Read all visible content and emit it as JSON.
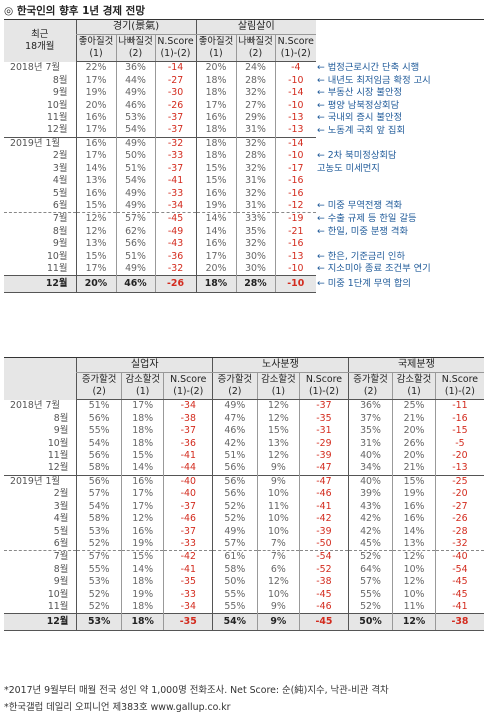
{
  "title": "◎ 한국인의 향후 1년 경제 전망",
  "table1": {
    "corner_line1": "최근",
    "corner_line2": "18개월",
    "groups": [
      "경기(景氣)",
      "살림살이"
    ],
    "cols": [
      {
        "label": "좋아질것",
        "sub": "(1)"
      },
      {
        "label": "나빠질것",
        "sub": "(2)"
      },
      {
        "label": "N.Score",
        "sub": "(1)-(2)"
      },
      {
        "label": "좋아질것",
        "sub": "(1)"
      },
      {
        "label": "나빠질것",
        "sub": "(2)"
      },
      {
        "label": "N.Score",
        "sub": "(1)-(2)"
      }
    ],
    "rows": [
      {
        "month": "2018년 7월",
        "v": [
          "22%",
          "36%",
          "-14",
          "20%",
          "24%",
          "-4"
        ],
        "note": "← 법정근로시간 단축 시행"
      },
      {
        "month": "8월",
        "v": [
          "17%",
          "44%",
          "-27",
          "18%",
          "28%",
          "-10"
        ],
        "note": "← 내년도 최저임금 확정 고시"
      },
      {
        "month": "9월",
        "v": [
          "19%",
          "49%",
          "-30",
          "18%",
          "32%",
          "-14"
        ],
        "note": "← 부동산 시장 불안정"
      },
      {
        "month": "10월",
        "v": [
          "20%",
          "46%",
          "-26",
          "17%",
          "27%",
          "-10"
        ],
        "note": "← 평양 남북정상회담"
      },
      {
        "month": "11월",
        "v": [
          "16%",
          "53%",
          "-37",
          "16%",
          "29%",
          "-13"
        ],
        "note": "← 국내외 증시 불안정"
      },
      {
        "month": "12월",
        "v": [
          "17%",
          "54%",
          "-37",
          "18%",
          "31%",
          "-13"
        ],
        "note": "← 노동계 국회 앞 집회"
      },
      {
        "month": "2019년 1월",
        "v": [
          "16%",
          "49%",
          "-32",
          "18%",
          "32%",
          "-14"
        ],
        "note": ""
      },
      {
        "month": "2월",
        "v": [
          "17%",
          "50%",
          "-33",
          "18%",
          "28%",
          "-10"
        ],
        "note": "← 2차 북미정상회담"
      },
      {
        "month": "3월",
        "v": [
          "14%",
          "51%",
          "-37",
          "15%",
          "32%",
          "-17"
        ],
        "note": "고농도 미세먼지"
      },
      {
        "month": "4월",
        "v": [
          "13%",
          "54%",
          "-41",
          "15%",
          "31%",
          "-16"
        ],
        "note": ""
      },
      {
        "month": "5월",
        "v": [
          "16%",
          "49%",
          "-33",
          "16%",
          "32%",
          "-16"
        ],
        "note": ""
      },
      {
        "month": "6월",
        "v": [
          "15%",
          "49%",
          "-34",
          "19%",
          "31%",
          "-12"
        ],
        "note": "← 미중 무역전쟁 격화"
      },
      {
        "month": "7월",
        "v": [
          "12%",
          "57%",
          "-45",
          "14%",
          "33%",
          "-19"
        ],
        "note": "← 수출 규제 등 한일 갈등"
      },
      {
        "month": "8월",
        "v": [
          "12%",
          "62%",
          "-49",
          "14%",
          "35%",
          "-21"
        ],
        "note": "← 한일, 미중 분쟁 격화"
      },
      {
        "month": "9월",
        "v": [
          "13%",
          "56%",
          "-43",
          "16%",
          "32%",
          "-16"
        ],
        "note": ""
      },
      {
        "month": "10월",
        "v": [
          "15%",
          "51%",
          "-36",
          "17%",
          "30%",
          "-13"
        ],
        "note": "← 한은, 기준금리 인하"
      },
      {
        "month": "11월",
        "v": [
          "17%",
          "49%",
          "-32",
          "20%",
          "30%",
          "-10"
        ],
        "note": "← 지소미아 종료 조건부 연기"
      }
    ],
    "final": {
      "month": "12월",
      "v": [
        "20%",
        "46%",
        "-26",
        "18%",
        "28%",
        "-10"
      ],
      "note": "← 미중 1단계 무역 합의"
    }
  },
  "table2": {
    "groups": [
      "실업자",
      "노사분쟁",
      "국제분쟁"
    ],
    "cols": [
      {
        "label": "증가할것",
        "sub": "(2)"
      },
      {
        "label": "감소할것",
        "sub": "(1)"
      },
      {
        "label": "N.Score",
        "sub": "(1)-(2)"
      },
      {
        "label": "증가할것",
        "sub": "(2)"
      },
      {
        "label": "감소할것",
        "sub": "(1)"
      },
      {
        "label": "N.Score",
        "sub": "(1)-(2)"
      },
      {
        "label": "증가할것",
        "sub": "(2)"
      },
      {
        "label": "감소할것",
        "sub": "(1)"
      },
      {
        "label": "N.Score",
        "sub": "(1)-(2)"
      }
    ],
    "rows": [
      {
        "month": "2018년 7월",
        "v": [
          "51%",
          "17%",
          "-34",
          "49%",
          "12%",
          "-37",
          "36%",
          "25%",
          "-11"
        ]
      },
      {
        "month": "8월",
        "v": [
          "56%",
          "18%",
          "-38",
          "47%",
          "12%",
          "-35",
          "37%",
          "21%",
          "-16"
        ]
      },
      {
        "month": "9월",
        "v": [
          "55%",
          "18%",
          "-37",
          "46%",
          "15%",
          "-31",
          "35%",
          "20%",
          "-15"
        ]
      },
      {
        "month": "10월",
        "v": [
          "54%",
          "18%",
          "-36",
          "42%",
          "13%",
          "-29",
          "31%",
          "26%",
          "-5"
        ]
      },
      {
        "month": "11월",
        "v": [
          "56%",
          "15%",
          "-41",
          "51%",
          "12%",
          "-39",
          "40%",
          "20%",
          "-20"
        ]
      },
      {
        "month": "12월",
        "v": [
          "58%",
          "14%",
          "-44",
          "56%",
          "9%",
          "-47",
          "34%",
          "21%",
          "-13"
        ]
      },
      {
        "month": "2019년 1월",
        "v": [
          "56%",
          "16%",
          "-40",
          "56%",
          "9%",
          "-47",
          "40%",
          "15%",
          "-25"
        ]
      },
      {
        "month": "2월",
        "v": [
          "57%",
          "17%",
          "-40",
          "56%",
          "10%",
          "-46",
          "39%",
          "19%",
          "-20"
        ]
      },
      {
        "month": "3월",
        "v": [
          "54%",
          "17%",
          "-37",
          "52%",
          "11%",
          "-41",
          "43%",
          "16%",
          "-27"
        ]
      },
      {
        "month": "4월",
        "v": [
          "58%",
          "12%",
          "-46",
          "52%",
          "10%",
          "-42",
          "42%",
          "16%",
          "-26"
        ]
      },
      {
        "month": "5월",
        "v": [
          "53%",
          "16%",
          "-37",
          "49%",
          "10%",
          "-39",
          "42%",
          "14%",
          "-28"
        ]
      },
      {
        "month": "6월",
        "v": [
          "52%",
          "19%",
          "-33",
          "57%",
          "7%",
          "-50",
          "45%",
          "13%",
          "-32"
        ]
      },
      {
        "month": "7월",
        "v": [
          "57%",
          "15%",
          "-42",
          "61%",
          "7%",
          "-54",
          "52%",
          "12%",
          "-40"
        ]
      },
      {
        "month": "8월",
        "v": [
          "55%",
          "14%",
          "-41",
          "58%",
          "6%",
          "-52",
          "64%",
          "10%",
          "-54"
        ]
      },
      {
        "month": "9월",
        "v": [
          "53%",
          "18%",
          "-35",
          "50%",
          "12%",
          "-38",
          "57%",
          "12%",
          "-45"
        ]
      },
      {
        "month": "10월",
        "v": [
          "52%",
          "19%",
          "-33",
          "55%",
          "10%",
          "-45",
          "55%",
          "10%",
          "-45"
        ]
      },
      {
        "month": "11월",
        "v": [
          "52%",
          "18%",
          "-34",
          "55%",
          "9%",
          "-46",
          "52%",
          "11%",
          "-41"
        ]
      }
    ],
    "final": {
      "month": "12월",
      "v": [
        "53%",
        "18%",
        "-35",
        "54%",
        "9%",
        "-45",
        "50%",
        "12%",
        "-38"
      ]
    }
  },
  "footer": {
    "line1": "*2017년 9월부터 매월 전국 성인 약 1,000명 전화조사. Net Score: 순(純)지수, 낙관-비관 격차",
    "line2": "*한국갤럽 데일리 오피니언 제383호 www.gallup.co.kr"
  }
}
